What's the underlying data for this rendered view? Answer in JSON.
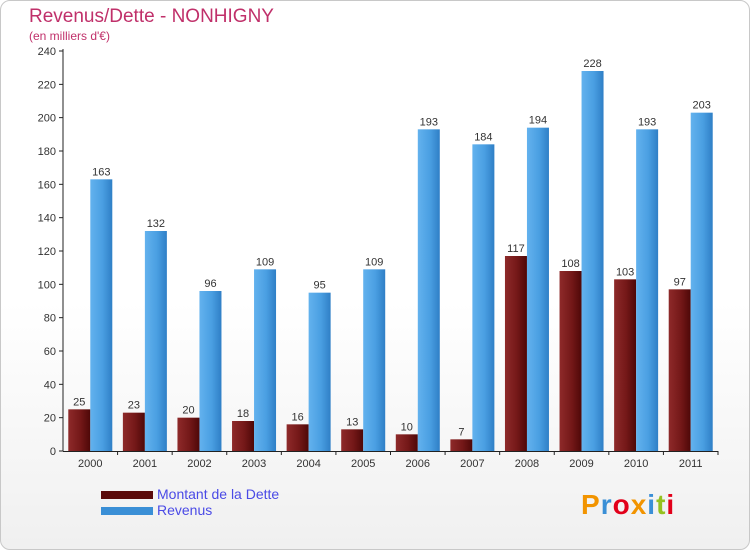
{
  "chart_data": {
    "type": "bar",
    "title": "Revenus/Dette - NONHIGNY",
    "subtitle": "(en milliers d'€)",
    "categories": [
      "2000",
      "2001",
      "2002",
      "2003",
      "2004",
      "2005",
      "2006",
      "2007",
      "2008",
      "2009",
      "2010",
      "2011"
    ],
    "series": [
      {
        "name": "Montant de la Dette",
        "color": "#7a1515",
        "values": [
          25,
          23,
          20,
          18,
          16,
          13,
          10,
          7,
          117,
          108,
          103,
          97
        ]
      },
      {
        "name": "Revenus",
        "color": "#3a8fd6",
        "values": [
          163,
          132,
          96,
          109,
          95,
          109,
          193,
          184,
          194,
          228,
          193,
          203
        ]
      }
    ],
    "ylim": [
      0,
      240
    ],
    "yticks": [
      0,
      20,
      40,
      60,
      80,
      100,
      120,
      140,
      160,
      180,
      200,
      220,
      240
    ],
    "grid": false,
    "legend_position": "bottom-left"
  },
  "logo": {
    "text": "Proxiti",
    "colors": [
      "#f29400",
      "#3a8fd6",
      "#e2001a",
      "#f29400",
      "#3a8fd6",
      "#95c11f",
      "#e2001a"
    ]
  }
}
